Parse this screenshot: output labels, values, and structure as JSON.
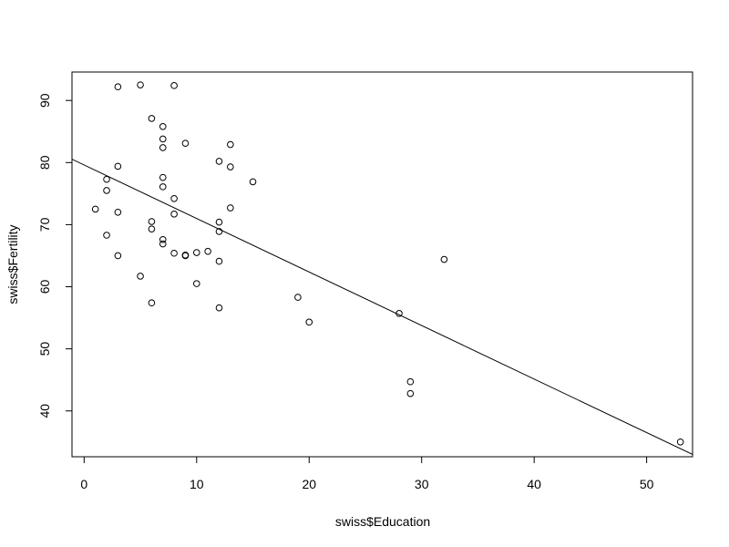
{
  "chart_data": {
    "type": "scatter",
    "title": "",
    "xlabel": "swiss$Education",
    "ylabel": "swiss$Fertility",
    "xlim": [
      -1.08,
      54.08
    ],
    "ylim": [
      32.62,
      94.58
    ],
    "x_ticks": [
      0,
      10,
      20,
      30,
      40,
      50
    ],
    "y_ticks": [
      40,
      50,
      60,
      70,
      80,
      90
    ],
    "grid": false,
    "legend": "none",
    "point_style": "open-circle",
    "colors": {
      "points": "#000000",
      "line": "#000000",
      "axes": "#000000",
      "background": "#ffffff"
    },
    "series": [
      {
        "points": [
          [
            12,
            80.2
          ],
          [
            9,
            83.1
          ],
          [
            5,
            92.5
          ],
          [
            7,
            85.8
          ],
          [
            15,
            76.9
          ],
          [
            7,
            76.1
          ],
          [
            7,
            83.8
          ],
          [
            8,
            92.4
          ],
          [
            7,
            82.4
          ],
          [
            13,
            82.9
          ],
          [
            6,
            87.1
          ],
          [
            12,
            64.1
          ],
          [
            7,
            66.9
          ],
          [
            12,
            68.9
          ],
          [
            5,
            61.7
          ],
          [
            2,
            68.3
          ],
          [
            8,
            71.7
          ],
          [
            28,
            55.7
          ],
          [
            20,
            54.3
          ],
          [
            9,
            65.1
          ],
          [
            10,
            65.5
          ],
          [
            3,
            65.0
          ],
          [
            12,
            56.6
          ],
          [
            6,
            57.4
          ],
          [
            1,
            72.5
          ],
          [
            8,
            74.2
          ],
          [
            3,
            72.0
          ],
          [
            10,
            60.5
          ],
          [
            19,
            58.3
          ],
          [
            8,
            65.4
          ],
          [
            2,
            75.5
          ],
          [
            6,
            69.3
          ],
          [
            2,
            77.3
          ],
          [
            6,
            70.5
          ],
          [
            3,
            79.4
          ],
          [
            9,
            65.0
          ],
          [
            3,
            92.2
          ],
          [
            13,
            79.3
          ],
          [
            12,
            70.4
          ],
          [
            11,
            65.7
          ],
          [
            13,
            72.7
          ],
          [
            32,
            64.4
          ],
          [
            7,
            77.6
          ],
          [
            7,
            67.6
          ],
          [
            53,
            35.0
          ],
          [
            29,
            44.7
          ],
          [
            29,
            42.8
          ]
        ]
      }
    ],
    "regression_line": {
      "intercept": 79.61,
      "slope": -0.862
    }
  }
}
